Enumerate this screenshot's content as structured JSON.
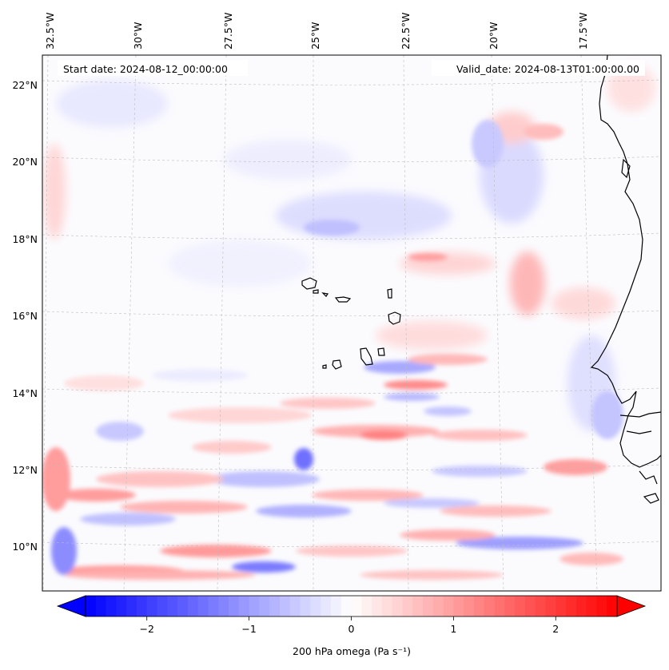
{
  "header": {
    "start_date": "Start date: 2024-08-12_00:00:00",
    "valid_date": "Valid_date: 2024-08-13T01:00:00.00"
  },
  "map": {
    "longitude_labels": [
      "32.5°W",
      "30°W",
      "27.5°W",
      "25°W",
      "22.5°W",
      "20°W",
      "17.5°W"
    ],
    "latitude_labels": [
      "22°N",
      "20°N",
      "18°N",
      "16°N",
      "14°N",
      "12°N",
      "10°N"
    ],
    "extent": {
      "lon_min": -32.9,
      "lon_max": -16.3,
      "lat_min": 8.9,
      "lat_max": 22.8
    },
    "gridlines": true,
    "coastline_color": "#000000"
  },
  "colorbar": {
    "label": "200 hPa omega (Pa s⁻¹)",
    "tick_labels": [
      "−2",
      "−1",
      "0",
      "1",
      "2"
    ],
    "tick_values": [
      -2,
      -1,
      0,
      1,
      2
    ],
    "range": [
      -2.6,
      2.6
    ],
    "extend": "both",
    "colormap": "bwr",
    "low_color": "#0000ff",
    "mid_color": "#ffffff",
    "high_color": "#ff0000"
  }
}
